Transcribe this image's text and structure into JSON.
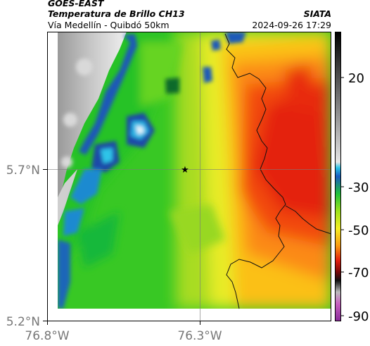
{
  "header": {
    "satellite": "GOES-EAST",
    "product": "Temperatura de Brillo CH13",
    "region": "Vía Medellín - Quibdó 50km",
    "agency": "SIATA",
    "datetime": "2024-09-26 17:29"
  },
  "map": {
    "lat_labels": [
      "5.7°N",
      "5.2°N"
    ],
    "lon_labels": [
      "76.8°W",
      "76.3°W"
    ],
    "marker": "star-marker"
  },
  "colorbar": {
    "tick_labels": [
      "20",
      "-30",
      "-50",
      "-70",
      "-90"
    ],
    "ticks": [
      20,
      -30,
      -50,
      -70,
      -90
    ]
  },
  "colors": {
    "gray_low": "#d9d9d9",
    "cyan": "#1fa7e0",
    "blue": "#1a4aa8",
    "green": "#1ec81e",
    "yellow": "#f8f02a",
    "orange": "#fb8b12",
    "red": "#e8200e"
  }
}
